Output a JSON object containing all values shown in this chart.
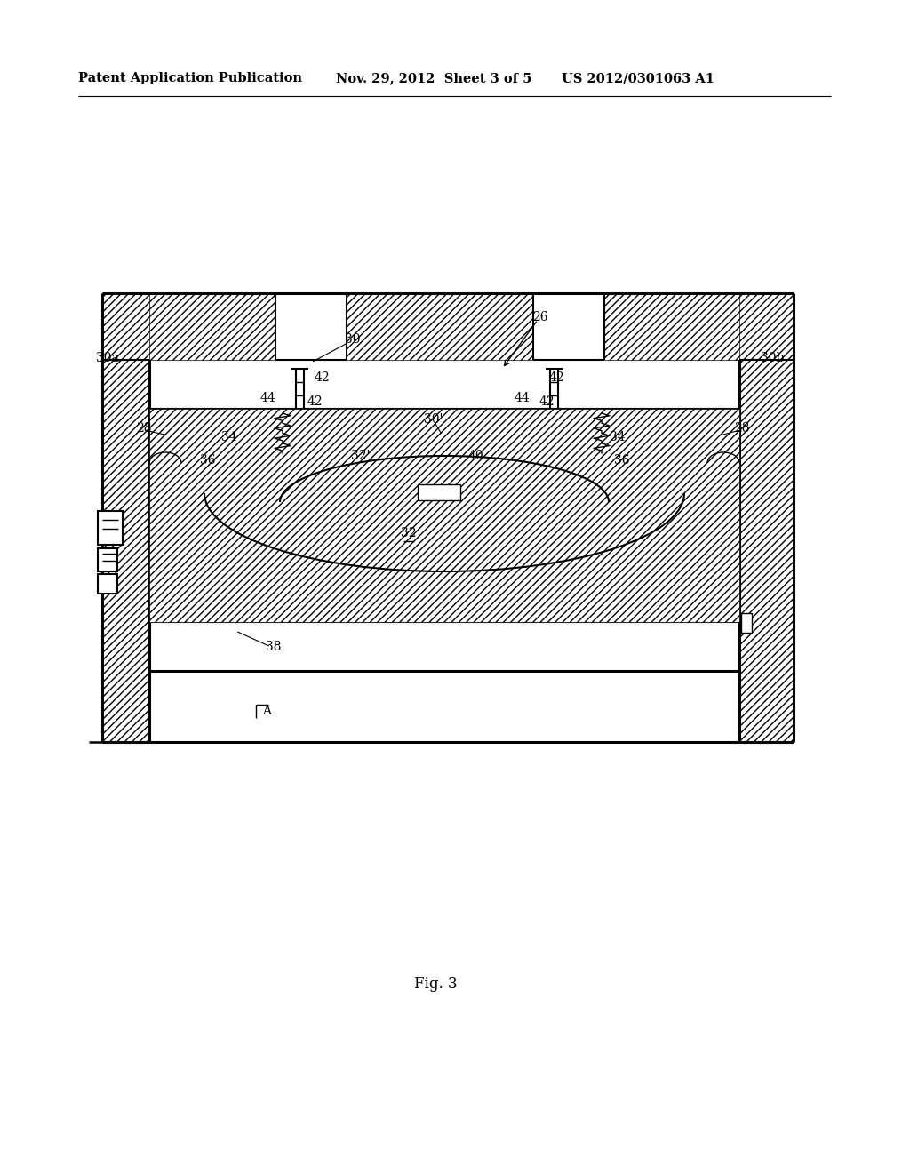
{
  "bg": "#ffffff",
  "lc": "#000000",
  "header_left": "Patent Application Publication",
  "header_mid": "Nov. 29, 2012  Sheet 3 of 5",
  "header_right": "US 2012/0301063 A1",
  "fig_caption": "Fig. 3"
}
